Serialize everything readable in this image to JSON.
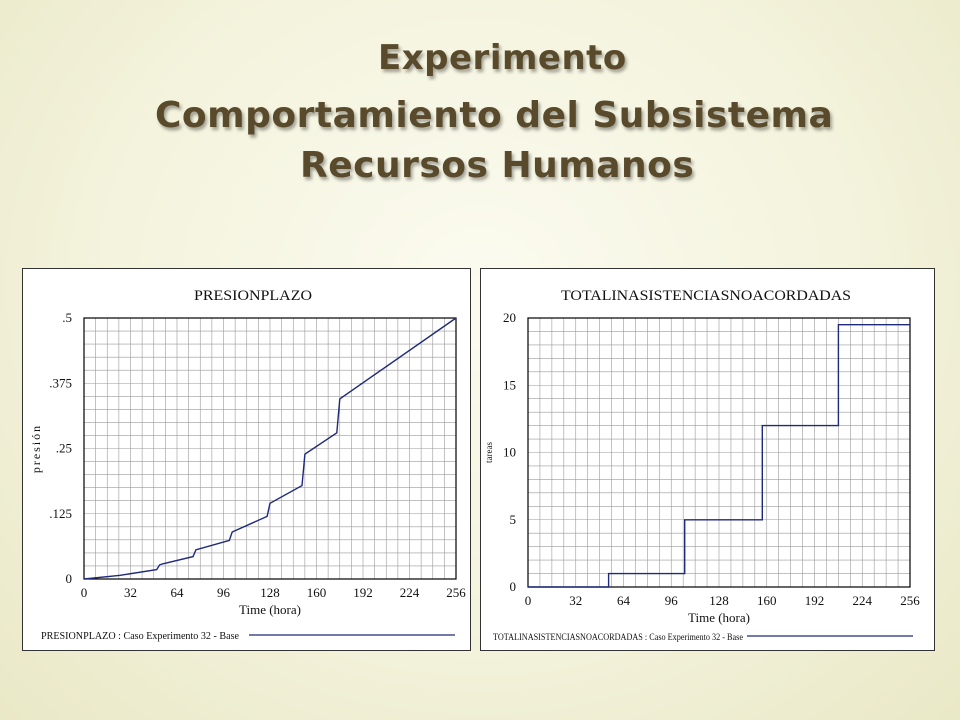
{
  "slide": {
    "title_line1": "Experimento",
    "title_line2": "Comportamiento del  Subsistema",
    "title_line3": "Recursos Humanos"
  },
  "colors": {
    "series": "#1f2a7a",
    "title": "#5a4a2c",
    "grid": "#9a9a9a"
  },
  "chart_data": [
    {
      "type": "line",
      "title": "PRESIONPLAZO",
      "xlabel": "Time (hora)",
      "ylabel": "presión",
      "xlim": [
        0,
        256
      ],
      "ylim": [
        0,
        0.5
      ],
      "xticks": [
        0,
        32,
        64,
        96,
        128,
        160,
        192,
        224,
        256
      ],
      "yticks": [
        0,
        0.125,
        0.25,
        0.375,
        0.5
      ],
      "ytick_labels": [
        "0",
        ".125",
        ".25",
        ".375",
        ".5"
      ],
      "grid": true,
      "legend_text": "PRESIONPLAZO : Caso Experimento 32 - Base",
      "series": [
        {
          "name": "PRESIONPLAZO : Caso Experimento 32 - Base",
          "x": [
            0,
            25,
            50,
            52,
            54,
            75,
            77,
            100,
            102,
            126,
            128,
            150,
            152,
            174,
            176,
            256
          ],
          "y": [
            0,
            0.007,
            0.018,
            0.027,
            0.029,
            0.043,
            0.056,
            0.074,
            0.09,
            0.12,
            0.145,
            0.179,
            0.239,
            0.28,
            0.345,
            0.5
          ]
        }
      ]
    },
    {
      "type": "line",
      "title": "TOTALINASISTENCIASNOACORDADAS",
      "xlabel": "Time (hora)",
      "ylabel": "tareas",
      "xlim": [
        0,
        256
      ],
      "ylim": [
        0,
        20
      ],
      "xticks": [
        0,
        32,
        64,
        96,
        128,
        160,
        192,
        224,
        256
      ],
      "yticks": [
        0,
        5,
        10,
        15,
        20
      ],
      "ytick_labels": [
        "0",
        "5",
        "10",
        "15",
        "20"
      ],
      "grid": true,
      "legend_text": "TOTALINASISTENCIASNOACORDADAS : Caso Experimento 32 - Base",
      "series": [
        {
          "name": "TOTALINASISTENCIASNOACORDADAS : Caso Experimento 32 - Base",
          "x": [
            0,
            54,
            54,
            105,
            105,
            157,
            157,
            208,
            208,
            256
          ],
          "y": [
            0,
            0,
            1,
            1,
            5,
            5,
            12,
            12,
            19.5,
            19.5
          ]
        }
      ]
    }
  ]
}
